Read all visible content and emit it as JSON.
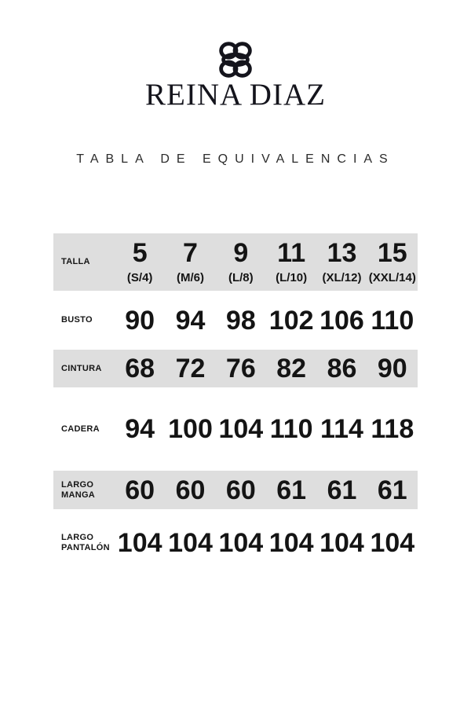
{
  "brand": {
    "name": "REINA DIAZ"
  },
  "page_title": "TABLA DE EQUIVALENCIAS",
  "colors": {
    "row_shaded_bg": "#dedede",
    "text": "#161616",
    "logo": "#14141c"
  },
  "icons": {
    "logo": "knot-logo-icon"
  },
  "size_table": {
    "rows": [
      {
        "label": "TALLA",
        "values": [
          "5",
          "7",
          "9",
          "11",
          "13",
          "15"
        ],
        "sublabels": [
          "(S/4)",
          "(M/6)",
          "(L/8)",
          "(L/10)",
          "(XL/12)",
          "(XXL/14)"
        ],
        "shaded": true
      },
      {
        "label": "BUSTO",
        "values": [
          "90",
          "94",
          "98",
          "102",
          "106",
          "110"
        ],
        "shaded": false
      },
      {
        "label": "CINTURA",
        "values": [
          "68",
          "72",
          "76",
          "82",
          "86",
          "90"
        ],
        "shaded": true
      },
      {
        "label": "CADERA",
        "values": [
          "94",
          "100",
          "104",
          "110",
          "114",
          "118"
        ],
        "shaded": false
      },
      {
        "label": "LARGO MANGA",
        "values": [
          "60",
          "60",
          "60",
          "61",
          "61",
          "61"
        ],
        "shaded": true
      },
      {
        "label": "LARGO PANTALÓN",
        "values": [
          "104",
          "104",
          "104",
          "104",
          "104",
          "104"
        ],
        "shaded": false
      }
    ]
  },
  "chart_data": {
    "type": "table",
    "title": "TABLA DE EQUIVALENCIAS",
    "columns": [
      "TALLA",
      "5 (S/4)",
      "7 (M/6)",
      "9 (L/8)",
      "11 (L/10)",
      "13 (XL/12)",
      "15 (XXL/14)"
    ],
    "rows": [
      [
        "BUSTO",
        90,
        94,
        98,
        102,
        106,
        110
      ],
      [
        "CINTURA",
        68,
        72,
        76,
        82,
        86,
        90
      ],
      [
        "CADERA",
        94,
        100,
        104,
        110,
        114,
        118
      ],
      [
        "LARGO MANGA",
        60,
        60,
        60,
        61,
        61,
        61
      ],
      [
        "LARGO PANTALÓN",
        104,
        104,
        104,
        104,
        104,
        104
      ]
    ]
  }
}
